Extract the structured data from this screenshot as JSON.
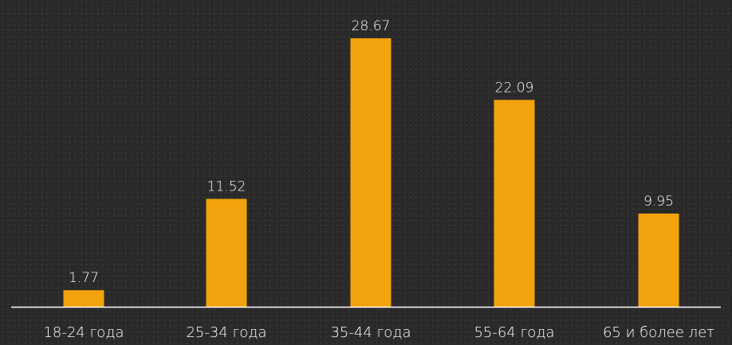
{
  "colors": {
    "bar": "#f2a20c",
    "axis": "#ffffff",
    "text": "#ffffff"
  },
  "chart_data": {
    "type": "bar",
    "title": "",
    "xlabel": "",
    "ylabel": "",
    "categories": [
      "18-24 года",
      "25-34 года",
      "35-44 года",
      "55-64 года",
      "65 и более лет"
    ],
    "values": [
      1.77,
      11.52,
      28.67,
      22.09,
      9.95
    ],
    "value_labels": [
      "1.77",
      "11.52",
      "28.67",
      "22.09",
      "9.95"
    ],
    "ylim": [
      0,
      30
    ],
    "grid": false,
    "legend": "none"
  }
}
